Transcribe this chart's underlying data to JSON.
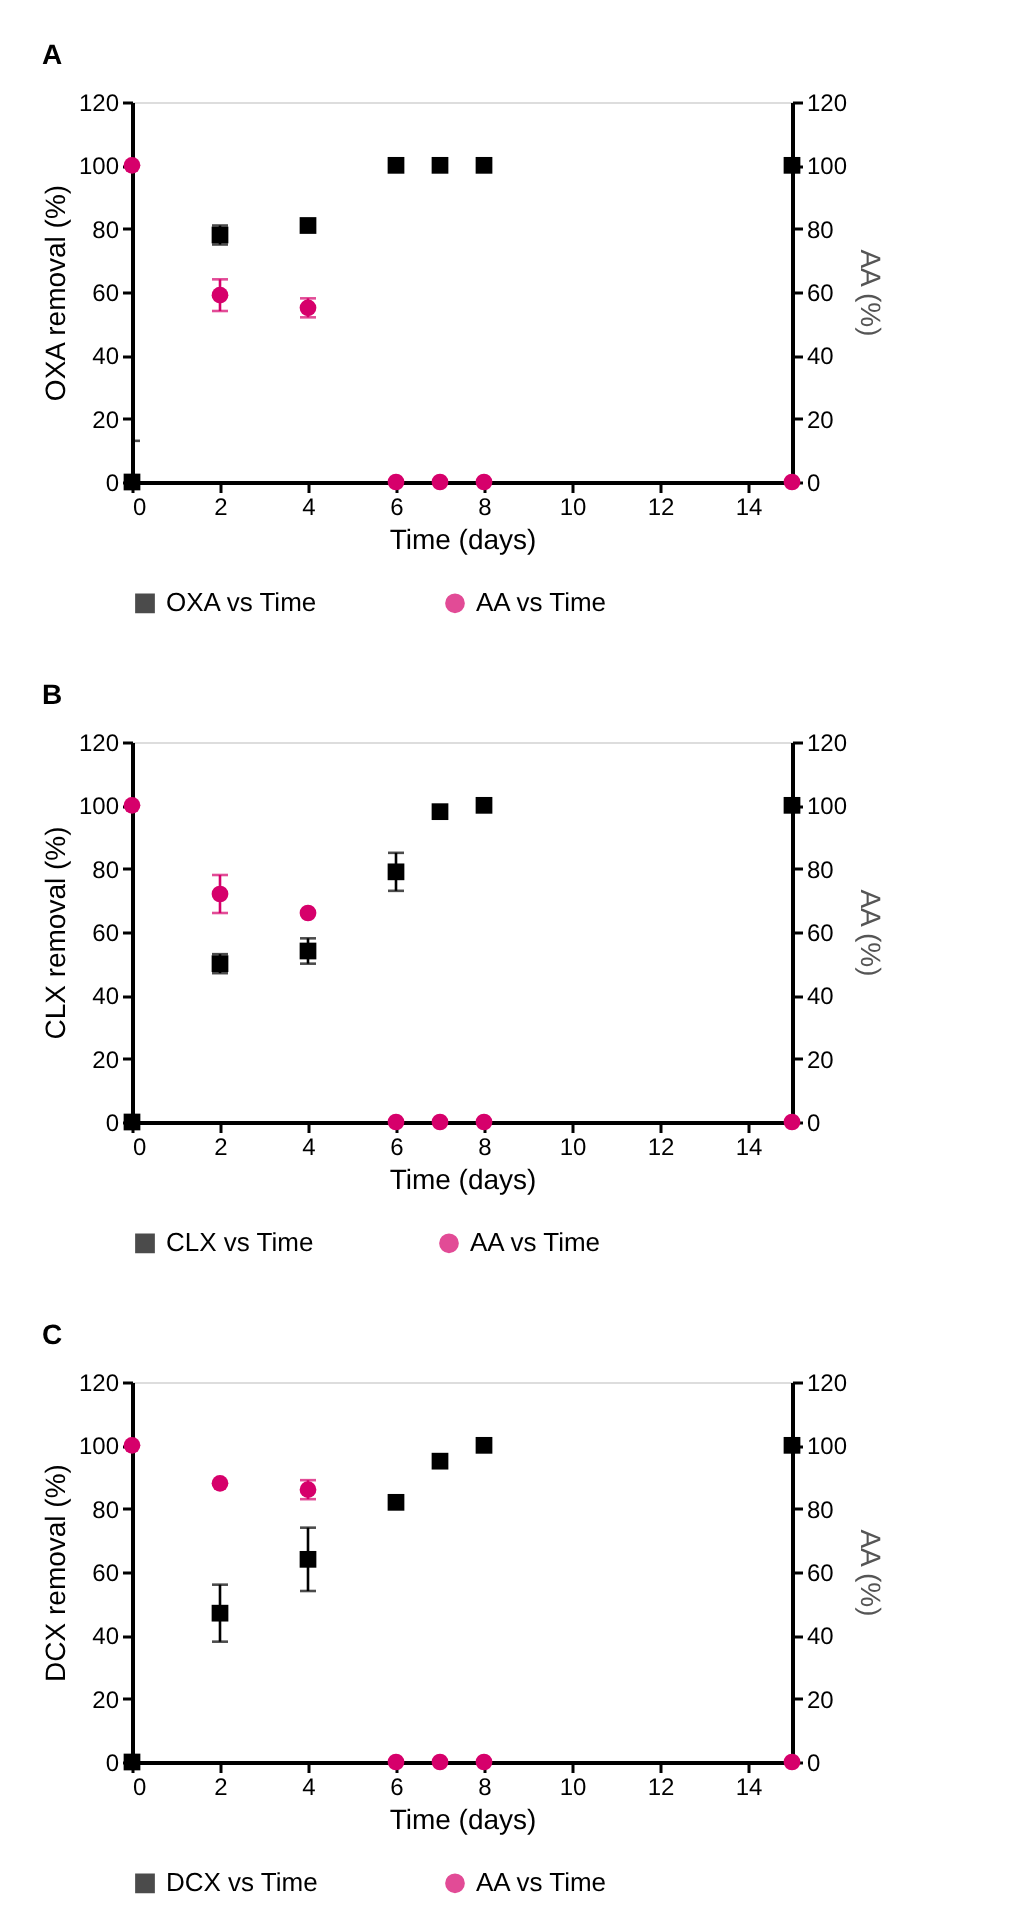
{
  "chart_data": [
    {
      "type": "scatter",
      "title": "A",
      "xlabel": "Time (days)",
      "ylabel": "OXA removal (%)",
      "y2label": "AA (%)",
      "x": [
        0,
        2,
        4,
        6,
        7,
        8,
        15
      ],
      "xlim": [
        0,
        15
      ],
      "xticks": [
        0,
        2,
        4,
        6,
        8,
        10,
        12,
        14
      ],
      "ylim": [
        0,
        120
      ],
      "yticks": [
        0,
        20,
        40,
        60,
        80,
        100,
        120
      ],
      "y2lim": [
        0,
        120
      ],
      "y2ticks": [
        0,
        20,
        40,
        60,
        80,
        100,
        120
      ],
      "grid": false,
      "legend": "bottom",
      "series": [
        {
          "name": "OXA vs Time",
          "color": "#000000",
          "marker": "square",
          "values": [
            0,
            78,
            81,
            100,
            100,
            100,
            100
          ],
          "errors": [
            [
              0,
              13
            ],
            3,
            null,
            null,
            null,
            null,
            null
          ]
        },
        {
          "name": "AA  vs Time",
          "color": "#d6006b",
          "marker": "circle",
          "axis": "y2",
          "values": [
            100,
            59,
            55,
            0,
            0,
            0,
            0
          ],
          "errors": [
            null,
            5,
            3,
            null,
            null,
            null,
            null
          ]
        }
      ]
    },
    {
      "type": "scatter",
      "title": "B",
      "xlabel": "Time (days)",
      "ylabel": "CLX removal (%)",
      "y2label": "AA (%)",
      "x": [
        0,
        2,
        4,
        6,
        7,
        8,
        15
      ],
      "xlim": [
        0,
        15
      ],
      "xticks": [
        0,
        2,
        4,
        6,
        8,
        10,
        12,
        14
      ],
      "ylim": [
        0,
        120
      ],
      "yticks": [
        0,
        20,
        40,
        60,
        80,
        100,
        120
      ],
      "y2lim": [
        0,
        120
      ],
      "y2ticks": [
        0,
        20,
        40,
        60,
        80,
        100,
        120
      ],
      "grid": false,
      "legend": "bottom",
      "series": [
        {
          "name": "CLX vs Time",
          "color": "#000000",
          "marker": "square",
          "values": [
            0,
            50,
            54,
            79,
            98,
            100,
            100
          ],
          "errors": [
            null,
            3,
            4,
            6,
            null,
            null,
            null
          ]
        },
        {
          "name": "AA vs Time",
          "color": "#d6006b",
          "marker": "circle",
          "axis": "y2",
          "values": [
            100,
            72,
            66,
            0,
            0,
            0,
            0
          ],
          "errors": [
            null,
            6,
            null,
            null,
            null,
            null,
            null
          ]
        }
      ]
    },
    {
      "type": "scatter",
      "title": "C",
      "xlabel": "Time (days)",
      "ylabel": "DCX removal (%)",
      "y2label": "AA (%)",
      "x": [
        0,
        2,
        4,
        6,
        7,
        8,
        15
      ],
      "xlim": [
        0,
        15
      ],
      "xticks": [
        0,
        2,
        4,
        6,
        8,
        10,
        12,
        14
      ],
      "ylim": [
        0,
        120
      ],
      "yticks": [
        0,
        20,
        40,
        60,
        80,
        100,
        120
      ],
      "y2lim": [
        0,
        120
      ],
      "y2ticks": [
        0,
        20,
        40,
        60,
        80,
        100,
        120
      ],
      "grid": false,
      "legend": "bottom",
      "series": [
        {
          "name": "DCX vs Time",
          "color": "#000000",
          "marker": "square",
          "values": [
            0,
            47,
            64,
            82,
            95,
            100,
            100
          ],
          "errors": [
            null,
            9,
            10,
            null,
            null,
            null,
            null
          ]
        },
        {
          "name": "AA vs Time",
          "color": "#d6006b",
          "marker": "circle",
          "axis": "y2",
          "values": [
            100,
            88,
            86,
            0,
            0,
            0,
            0
          ],
          "errors": [
            null,
            null,
            3,
            null,
            null,
            null,
            null
          ]
        }
      ]
    }
  ]
}
